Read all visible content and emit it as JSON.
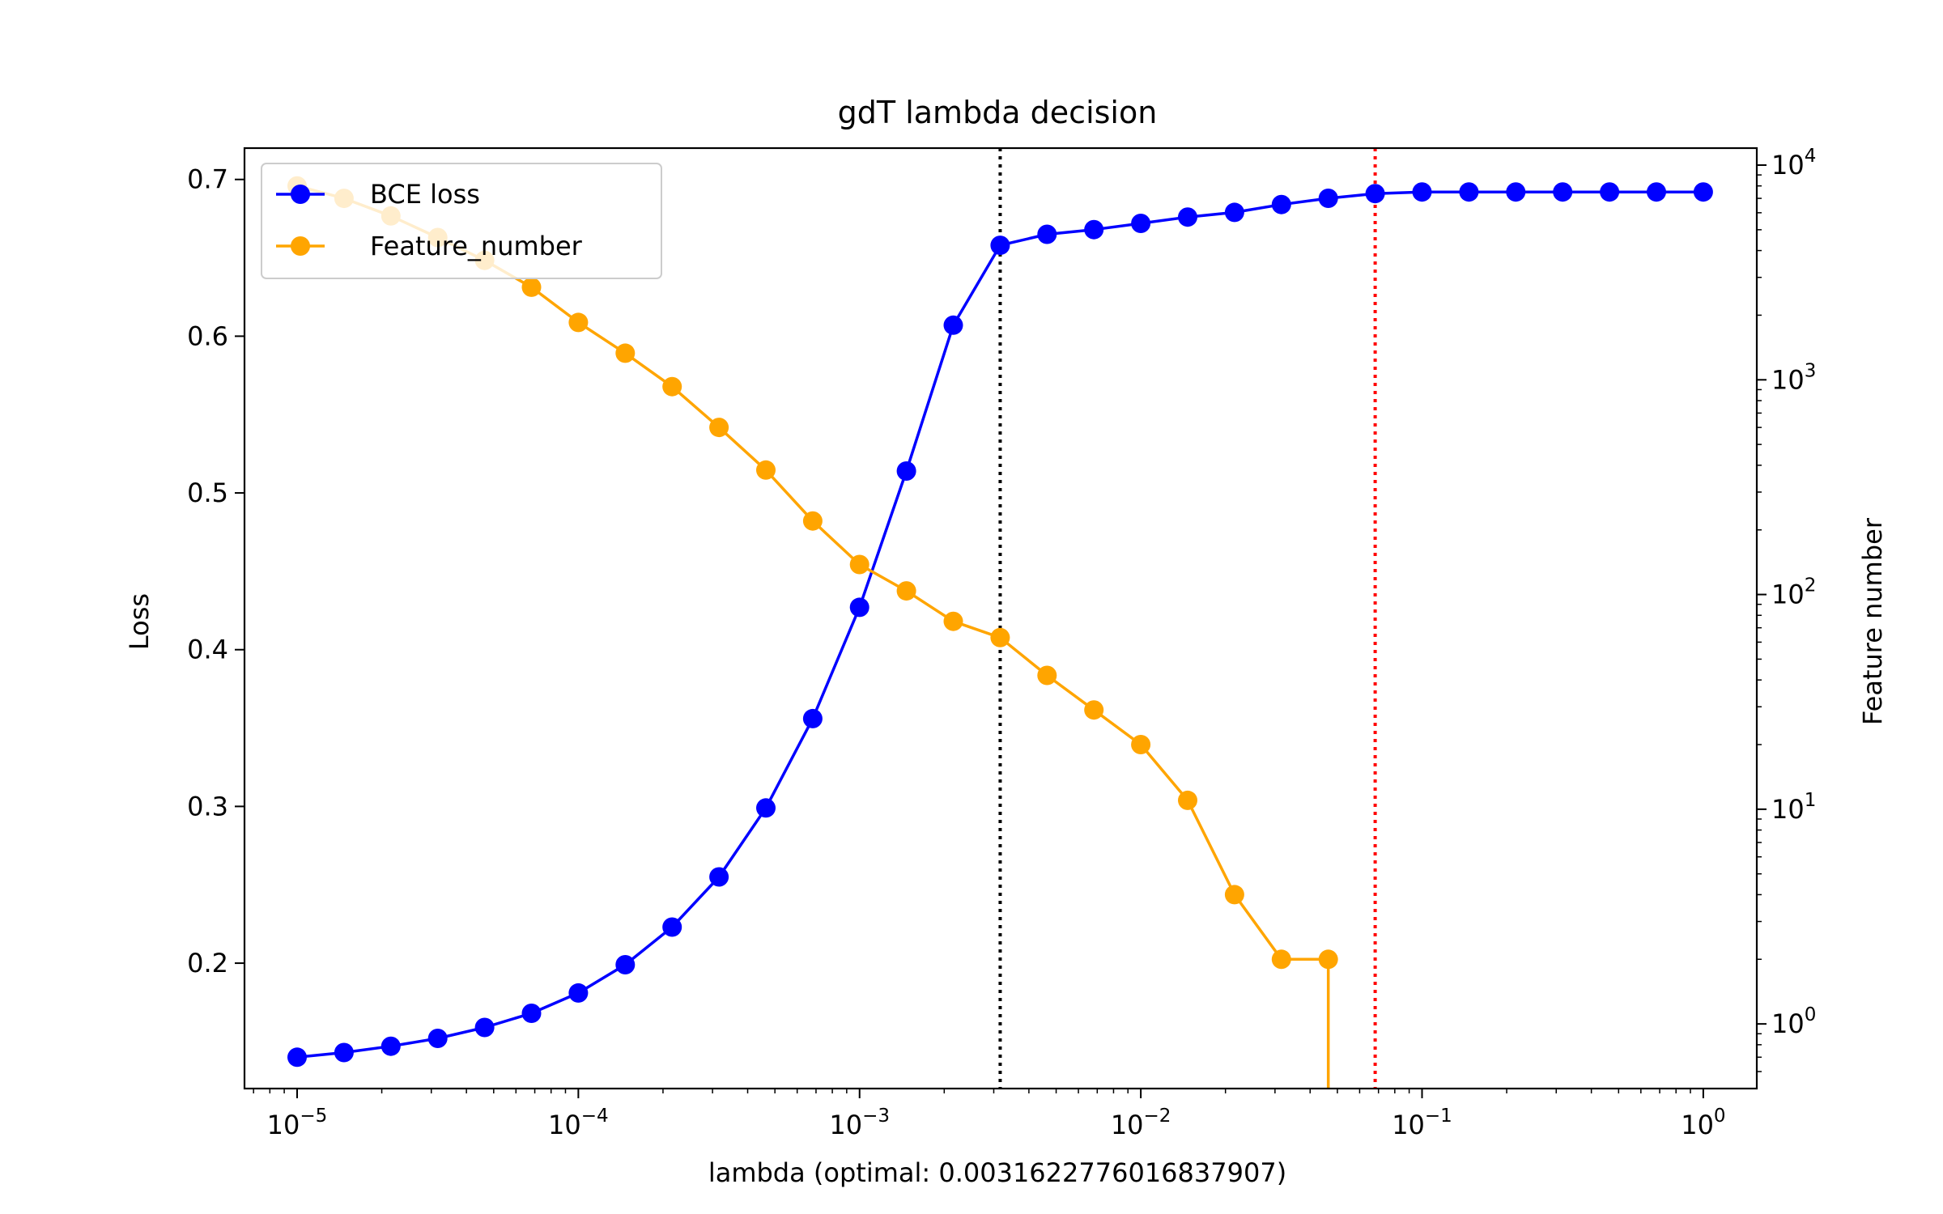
{
  "chart_data": {
    "type": "line",
    "title": "gdT lambda decision",
    "xlabel": "lambda (optimal: 0.0031622776016837907)",
    "ylabel_left": "Loss",
    "ylabel_right": "Feature number",
    "x_scale": "log",
    "x_ticks": [
      {
        "value": 1e-05,
        "base": "10",
        "exp": "−5"
      },
      {
        "value": 0.0001,
        "base": "10",
        "exp": "−4"
      },
      {
        "value": 0.001,
        "base": "10",
        "exp": "−3"
      },
      {
        "value": 0.01,
        "base": "10",
        "exp": "−2"
      },
      {
        "value": 0.1,
        "base": "10",
        "exp": "−1"
      },
      {
        "value": 1,
        "base": "10",
        "exp": "0"
      }
    ],
    "xlim": [
      6.5e-06,
      1.55
    ],
    "y_left": {
      "scale": "linear",
      "ylim": [
        0.12,
        0.72
      ],
      "ticks": [
        "0.2",
        "0.3",
        "0.4",
        "0.5",
        "0.6",
        "0.7"
      ]
    },
    "y_right": {
      "scale": "log",
      "ylim": [
        0.5,
        12000
      ],
      "ticks": [
        {
          "value": 1,
          "base": "10",
          "exp": "0"
        },
        {
          "value": 10,
          "base": "10",
          "exp": "1"
        },
        {
          "value": 100,
          "base": "10",
          "exp": "2"
        },
        {
          "value": 1000,
          "base": "10",
          "exp": "3"
        },
        {
          "value": 10000,
          "base": "10",
          "exp": "4"
        }
      ]
    },
    "x": [
      1e-05,
      1.4678e-05,
      2.1544e-05,
      3.1623e-05,
      4.6416e-05,
      6.8129e-05,
      0.0001,
      0.00014678,
      0.00021544,
      0.00031623,
      0.00046416,
      0.00068129,
      0.001,
      0.0014678,
      0.0021544,
      0.0031623,
      0.0046416,
      0.0068129,
      0.01,
      0.014678,
      0.021544,
      0.031623,
      0.046416,
      0.068129,
      0.1,
      0.14678,
      0.21544,
      0.31623,
      0.46416,
      0.68129,
      1
    ],
    "series": [
      {
        "name": "BCE loss",
        "axis": "left",
        "color": "#0000ff",
        "values": [
          0.14,
          0.143,
          0.147,
          0.152,
          0.159,
          0.168,
          0.181,
          0.199,
          0.223,
          0.255,
          0.299,
          0.356,
          0.427,
          0.514,
          0.607,
          0.658,
          0.665,
          0.668,
          0.672,
          0.676,
          0.679,
          0.684,
          0.688,
          0.691,
          0.692,
          0.692,
          0.692,
          0.692,
          0.692,
          0.692,
          0.692
        ]
      },
      {
        "name": "Feature_number",
        "axis": "right",
        "color": "#ffa500",
        "values": [
          8000,
          7000,
          5800,
          4600,
          3600,
          2700,
          1850,
          1330,
          930,
          600,
          380,
          220,
          138,
          104,
          75,
          63,
          42,
          29,
          20,
          11,
          4,
          2,
          2,
          null,
          null,
          null,
          null,
          null,
          null,
          null,
          null
        ],
        "drop_line_to_bottom_at": 0.046416
      }
    ],
    "vlines": [
      {
        "x": 0.0031623,
        "color": "#000000",
        "style": "dotted"
      },
      {
        "x": 0.068129,
        "color": "#ff0000",
        "style": "dotted"
      }
    ],
    "legend": {
      "placement": "top-left"
    }
  }
}
